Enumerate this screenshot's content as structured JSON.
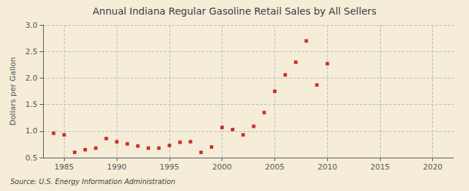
{
  "chart_data": {
    "type": "scatter",
    "title": "Annual Indiana Regular Gasoline Retail Sales by All Sellers",
    "ylabel": "Dollars per Gallon",
    "annotation": "Source: U.S. Energy Information Administration",
    "x": [
      1984,
      1985,
      1986,
      1987,
      1988,
      1989,
      1990,
      1991,
      1992,
      1993,
      1994,
      1995,
      1996,
      1997,
      1998,
      1999,
      2000,
      2001,
      2002,
      2003,
      2004,
      2005,
      2006,
      2007,
      2008,
      2009,
      2010
    ],
    "values": [
      0.96,
      0.93,
      0.6,
      0.65,
      0.68,
      0.86,
      0.8,
      0.76,
      0.72,
      0.68,
      0.68,
      0.73,
      0.79,
      0.8,
      0.6,
      0.7,
      1.07,
      1.03,
      0.93,
      1.09,
      1.35,
      1.75,
      2.06,
      2.3,
      2.7,
      1.87,
      2.27
    ],
    "color": "#c00000",
    "marker": "square",
    "xlim": [
      1983,
      2022
    ],
    "ylim": [
      0.5,
      3.0
    ],
    "xticks": [
      1985,
      1990,
      1995,
      2000,
      2005,
      2010,
      2015,
      2020
    ],
    "yticks": [
      0.5,
      {
        "value": 1.0,
        "label": "1.0"
      },
      1.5,
      {
        "value": 2.0,
        "label": "2.0"
      },
      2.5,
      {
        "value": 3.0,
        "label": "3.0"
      }
    ],
    "grid": true
  }
}
